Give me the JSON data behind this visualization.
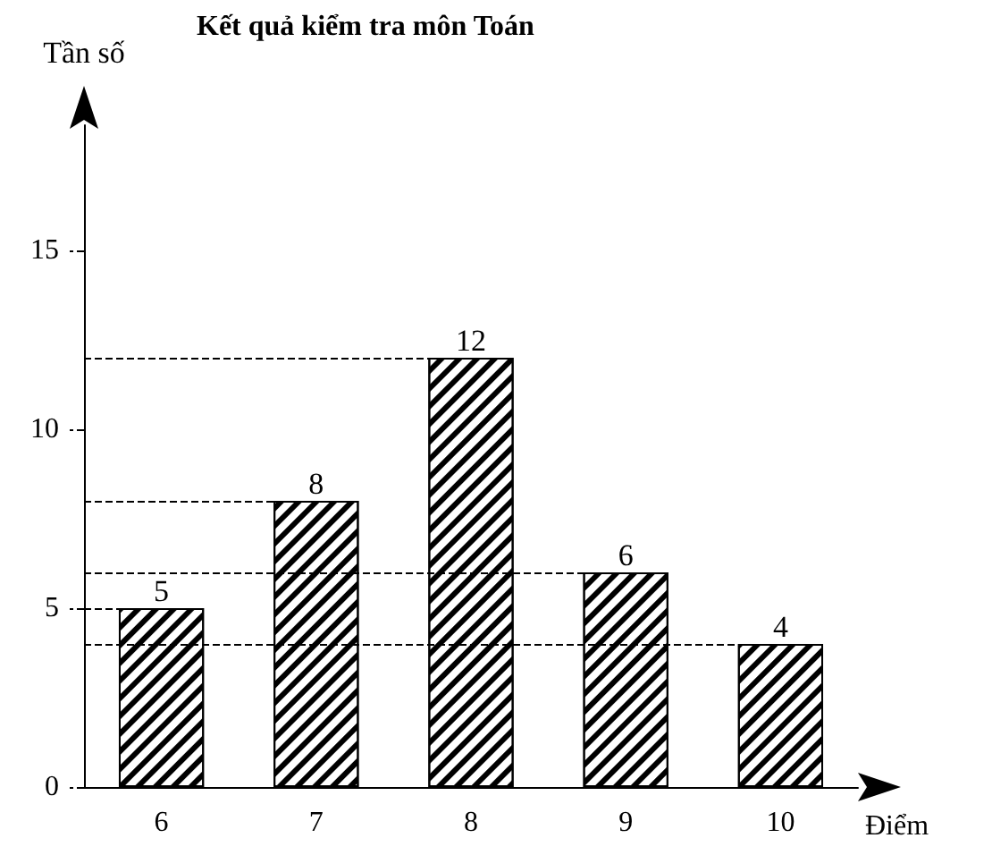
{
  "chart_data": {
    "type": "bar",
    "title": "Kết quả kiểm tra môn Toán",
    "xlabel": "Điểm",
    "ylabel": "Tần số",
    "categories": [
      "6",
      "7",
      "8",
      "9",
      "10"
    ],
    "values": [
      5,
      8,
      12,
      6,
      4
    ],
    "color": "#000000",
    "ylim": [
      0,
      18.5
    ],
    "yticks": [
      0,
      5,
      10,
      15
    ],
    "grid": false,
    "data_labels": true,
    "ref_lines": [
      {
        "axis": "y",
        "value": 12,
        "line_style": "dashed"
      },
      {
        "axis": "y",
        "value": 8,
        "line_style": "dashed"
      },
      {
        "axis": "y",
        "value": 6,
        "line_style": "dashed"
      },
      {
        "axis": "y",
        "value": 5,
        "line_style": "dashed"
      },
      {
        "axis": "y",
        "value": 4,
        "line_style": "dashed"
      }
    ]
  }
}
